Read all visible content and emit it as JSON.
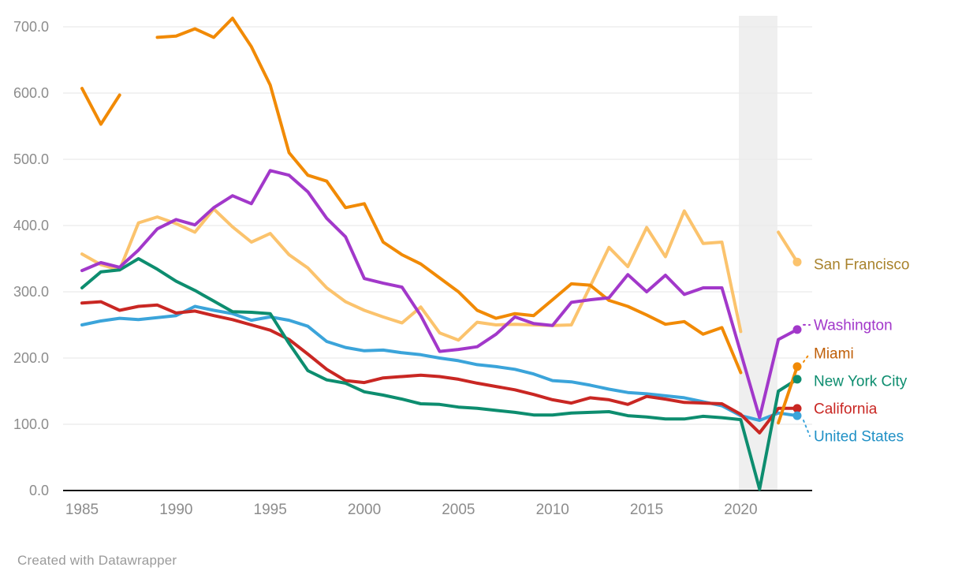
{
  "chart_data": {
    "type": "line",
    "title": "",
    "xlabel": "",
    "ylabel": "",
    "ylim": [
      0,
      700
    ],
    "xlim": [
      1985,
      2023
    ],
    "grid": true,
    "legend_position": "right-edge-labels",
    "y_tick_labels": [
      "0.0",
      "100.0",
      "200.0",
      "300.0",
      "400.0",
      "500.0",
      "600.0",
      "700.0"
    ],
    "x_tick_labels": [
      "1985",
      "1990",
      "1995",
      "2000",
      "2005",
      "2010",
      "2015",
      "2020"
    ],
    "highlight_band": {
      "from_year": 2019.9,
      "to_year": 2021.95,
      "color": "#efefef"
    },
    "years": [
      1985,
      1986,
      1987,
      1988,
      1989,
      1990,
      1991,
      1992,
      1993,
      1994,
      1995,
      1996,
      1997,
      1998,
      1999,
      2000,
      2001,
      2002,
      2003,
      2004,
      2005,
      2006,
      2007,
      2008,
      2009,
      2010,
      2011,
      2012,
      2013,
      2014,
      2015,
      2016,
      2017,
      2018,
      2019,
      2020,
      2021,
      2022,
      2023
    ],
    "series": [
      {
        "name": "San Francisco",
        "color": "#fbc36d",
        "label_color": "#a9832d",
        "label_y": 335,
        "values": [
          357,
          341,
          333,
          404,
          413,
          403,
          390,
          425,
          398,
          375,
          388,
          356,
          336,
          306,
          285,
          272,
          262,
          253,
          277,
          238,
          227,
          254,
          250,
          251,
          250,
          249,
          250,
          308,
          367,
          338,
          397,
          353,
          422,
          373,
          375,
          240,
          null,
          390,
          345
        ]
      },
      {
        "name": "Washington",
        "color": "#a238ca",
        "label_color": "#a238ca",
        "label_y": 412,
        "values": [
          332,
          344,
          337,
          363,
          395,
          409,
          401,
          427,
          445,
          433,
          483,
          476,
          451,
          411,
          383,
          320,
          313,
          307,
          264,
          210,
          213,
          217,
          236,
          262,
          252,
          249,
          284,
          288,
          291,
          326,
          300,
          325,
          296,
          306,
          306,
          208,
          110,
          228,
          243
        ]
      },
      {
        "name": "Miami",
        "color": "#f18a05",
        "label_color": "#c05f08",
        "label_y": 448,
        "values": [
          607,
          553,
          597,
          null,
          684,
          686,
          697,
          684,
          713,
          670,
          612,
          510,
          476,
          467,
          427,
          433,
          375,
          356,
          342,
          321,
          300,
          272,
          260,
          267,
          264,
          288,
          312,
          310,
          287,
          278,
          265,
          251,
          255,
          236,
          246,
          178,
          null,
          102,
          187
        ]
      },
      {
        "name": "New York City",
        "color": "#0d8d6f",
        "label_color": "#0d8d6f",
        "label_y": 483,
        "values": [
          306,
          330,
          333,
          350,
          334,
          316,
          302,
          286,
          270,
          269,
          267,
          222,
          181,
          167,
          162,
          149,
          144,
          138,
          131,
          130,
          126,
          124,
          121,
          118,
          114,
          114,
          117,
          118,
          119,
          113,
          111,
          108,
          108,
          112,
          110,
          107,
          2,
          150,
          168
        ]
      },
      {
        "name": "California",
        "color": "#c92723",
        "label_color": "#c92723",
        "label_y": 518,
        "values": [
          283,
          285,
          272,
          278,
          280,
          268,
          271,
          264,
          258,
          250,
          242,
          228,
          206,
          183,
          166,
          163,
          170,
          172,
          174,
          172,
          168,
          162,
          157,
          152,
          145,
          137,
          132,
          140,
          137,
          130,
          142,
          138,
          133,
          132,
          131,
          115,
          87,
          124,
          124
        ]
      },
      {
        "name": "United States",
        "color": "#3ba4da",
        "label_color": "#2191c6",
        "label_y": 553,
        "values": [
          250,
          256,
          260,
          258,
          261,
          264,
          278,
          272,
          267,
          257,
          262,
          257,
          248,
          225,
          216,
          211,
          212,
          208,
          205,
          200,
          196,
          190,
          187,
          183,
          176,
          166,
          164,
          159,
          153,
          148,
          146,
          143,
          140,
          134,
          128,
          113,
          106,
          117,
          113
        ]
      }
    ]
  },
  "footer": {
    "credit": "Created with Datawrapper"
  }
}
